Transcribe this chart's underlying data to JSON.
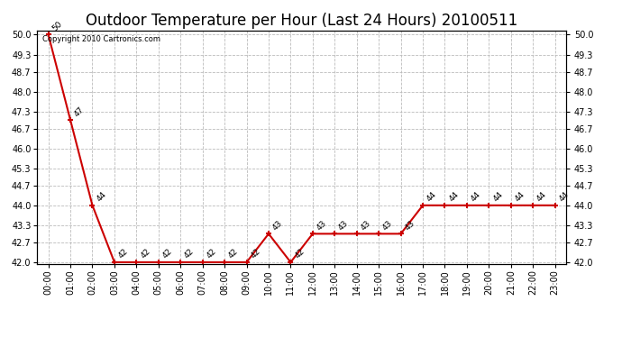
{
  "title": "Outdoor Temperature per Hour (Last 24 Hours) 20100511",
  "watermark": "Copyright 2010 Cartronics.com",
  "hours": [
    "00:00",
    "01:00",
    "02:00",
    "03:00",
    "04:00",
    "05:00",
    "06:00",
    "07:00",
    "08:00",
    "09:00",
    "10:00",
    "11:00",
    "12:00",
    "13:00",
    "14:00",
    "15:00",
    "16:00",
    "17:00",
    "18:00",
    "19:00",
    "20:00",
    "21:00",
    "22:00",
    "23:00"
  ],
  "values": [
    50,
    47,
    44,
    42,
    42,
    42,
    42,
    42,
    42,
    42,
    43,
    42,
    43,
    43,
    43,
    43,
    43,
    44,
    44,
    44,
    44,
    44,
    44,
    44
  ],
  "line_color": "#cc0000",
  "marker_color": "#cc0000",
  "bg_color": "#ffffff",
  "grid_color": "#bbbbbb",
  "ylim_min": 42.0,
  "ylim_max": 50.0,
  "ytick_values": [
    42.0,
    42.7,
    43.3,
    44.0,
    44.7,
    45.3,
    46.0,
    46.7,
    47.3,
    48.0,
    48.7,
    49.3,
    50.0
  ],
  "title_fontsize": 12,
  "label_fontsize": 7,
  "annotation_fontsize": 6.5
}
